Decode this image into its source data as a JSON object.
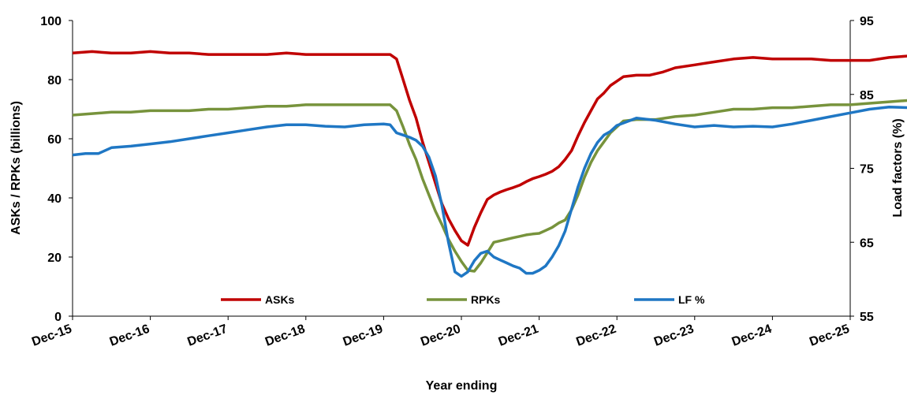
{
  "chart_data": {
    "type": "line",
    "title": "",
    "xlabel": "Year ending",
    "ylabel": "ASKs / RPKs (billions)",
    "y2label": "Load factors (%)",
    "x_tick_labels": [
      "Dec-15",
      "Dec-16",
      "Dec-17",
      "Dec-18",
      "Dec-19",
      "Dec-20",
      "Dec-21",
      "Dec-22",
      "Dec-23",
      "Dec-24",
      "Dec-25"
    ],
    "ylim": [
      0,
      100
    ],
    "y_ticks": [
      "0",
      "20",
      "40",
      "60",
      "80",
      "100"
    ],
    "y2lim": [
      55,
      95
    ],
    "y2_ticks": [
      "55",
      "65",
      "75",
      "85",
      "95"
    ],
    "grid": false,
    "legend_position": "bottom-center",
    "series": [
      {
        "name": "ASKs",
        "axis": "left",
        "color": "#c00000",
        "points": [
          [
            "2015-12",
            89
          ],
          [
            "2016-03",
            89.5
          ],
          [
            "2016-06",
            89
          ],
          [
            "2016-09",
            89
          ],
          [
            "2016-12",
            89.5
          ],
          [
            "2017-03",
            89
          ],
          [
            "2017-06",
            89
          ],
          [
            "2017-09",
            88.5
          ],
          [
            "2017-12",
            88.5
          ],
          [
            "2018-03",
            88.5
          ],
          [
            "2018-06",
            88.5
          ],
          [
            "2018-09",
            89
          ],
          [
            "2018-12",
            88.5
          ],
          [
            "2019-03",
            88.5
          ],
          [
            "2019-06",
            88.5
          ],
          [
            "2019-09",
            88.5
          ],
          [
            "2019-12",
            88.5
          ],
          [
            "2020-01",
            88.5
          ],
          [
            "2020-02",
            87
          ],
          [
            "2020-03",
            80
          ],
          [
            "2020-04",
            73
          ],
          [
            "2020-05",
            67
          ],
          [
            "2020-06",
            59
          ],
          [
            "2020-07",
            52
          ],
          [
            "2020-08",
            45
          ],
          [
            "2020-09",
            38
          ],
          [
            "2020-10",
            33
          ],
          [
            "2020-11",
            29
          ],
          [
            "2020-12",
            25.5
          ],
          [
            "2021-01",
            24
          ],
          [
            "2021-02",
            30
          ],
          [
            "2021-03",
            35
          ],
          [
            "2021-04",
            39.5
          ],
          [
            "2021-05",
            41
          ],
          [
            "2021-06",
            42
          ],
          [
            "2021-07",
            42.8
          ],
          [
            "2021-08",
            43.5
          ],
          [
            "2021-09",
            44.3
          ],
          [
            "2021-10",
            45.5
          ],
          [
            "2021-11",
            46.5
          ],
          [
            "2021-12",
            47.2
          ],
          [
            "2022-01",
            48
          ],
          [
            "2022-02",
            49
          ],
          [
            "2022-03",
            50.5
          ],
          [
            "2022-04",
            53
          ],
          [
            "2022-05",
            56
          ],
          [
            "2022-06",
            61
          ],
          [
            "2022-07",
            65.5
          ],
          [
            "2022-08",
            69.5
          ],
          [
            "2022-09",
            73.5
          ],
          [
            "2022-10",
            75.5
          ],
          [
            "2022-11",
            78
          ],
          [
            "2022-12",
            79.5
          ],
          [
            "2023-01",
            81
          ],
          [
            "2023-03",
            81.5
          ],
          [
            "2023-05",
            81.5
          ],
          [
            "2023-07",
            82.5
          ],
          [
            "2023-09",
            84
          ],
          [
            "2023-12",
            85
          ],
          [
            "2024-03",
            86
          ],
          [
            "2024-06",
            87
          ],
          [
            "2024-09",
            87.5
          ],
          [
            "2024-12",
            87
          ],
          [
            "2025-03",
            87
          ],
          [
            "2025-06",
            87
          ],
          [
            "2025-09",
            86.5
          ],
          [
            "2025-12",
            86.5
          ],
          [
            "2026-03",
            86.5
          ],
          [
            "2026-06",
            87.5
          ],
          [
            "2026-09",
            88
          ],
          [
            "2026-12",
            88.5
          ]
        ]
      },
      {
        "name": "RPKs",
        "axis": "left",
        "color": "#77933c",
        "points": [
          [
            "2015-12",
            68
          ],
          [
            "2016-03",
            68.5
          ],
          [
            "2016-06",
            69
          ],
          [
            "2016-09",
            69
          ],
          [
            "2016-12",
            69.5
          ],
          [
            "2017-03",
            69.5
          ],
          [
            "2017-06",
            69.5
          ],
          [
            "2017-09",
            70
          ],
          [
            "2017-12",
            70
          ],
          [
            "2018-03",
            70.5
          ],
          [
            "2018-06",
            71
          ],
          [
            "2018-09",
            71
          ],
          [
            "2018-12",
            71.5
          ],
          [
            "2019-03",
            71.5
          ],
          [
            "2019-06",
            71.5
          ],
          [
            "2019-09",
            71.5
          ],
          [
            "2019-12",
            71.5
          ],
          [
            "2020-01",
            71.5
          ],
          [
            "2020-02",
            69.5
          ],
          [
            "2020-03",
            64
          ],
          [
            "2020-04",
            58
          ],
          [
            "2020-05",
            53
          ],
          [
            "2020-06",
            46.5
          ],
          [
            "2020-07",
            41
          ],
          [
            "2020-08",
            35.5
          ],
          [
            "2020-09",
            31
          ],
          [
            "2020-10",
            26
          ],
          [
            "2020-11",
            22
          ],
          [
            "2020-12",
            18.5
          ],
          [
            "2021-01",
            15.5
          ],
          [
            "2021-02",
            15.2
          ],
          [
            "2021-03",
            18
          ],
          [
            "2021-04",
            21.5
          ],
          [
            "2021-05",
            25
          ],
          [
            "2021-06",
            25.5
          ],
          [
            "2021-07",
            26
          ],
          [
            "2021-08",
            26.5
          ],
          [
            "2021-09",
            27
          ],
          [
            "2021-10",
            27.5
          ],
          [
            "2021-11",
            27.8
          ],
          [
            "2021-12",
            28
          ],
          [
            "2022-01",
            29
          ],
          [
            "2022-02",
            30
          ],
          [
            "2022-03",
            31.5
          ],
          [
            "2022-04",
            32.5
          ],
          [
            "2022-05",
            36
          ],
          [
            "2022-06",
            41
          ],
          [
            "2022-07",
            47
          ],
          [
            "2022-08",
            52
          ],
          [
            "2022-09",
            56
          ],
          [
            "2022-10",
            59
          ],
          [
            "2022-11",
            62
          ],
          [
            "2022-12",
            64
          ],
          [
            "2023-01",
            66
          ],
          [
            "2023-03",
            66.5
          ],
          [
            "2023-06",
            66.5
          ],
          [
            "2023-09",
            67.5
          ],
          [
            "2023-12",
            68
          ],
          [
            "2024-03",
            69
          ],
          [
            "2024-06",
            70
          ],
          [
            "2024-09",
            70
          ],
          [
            "2024-12",
            70.5
          ],
          [
            "2025-03",
            70.5
          ],
          [
            "2025-06",
            71
          ],
          [
            "2025-09",
            71.5
          ],
          [
            "2025-12",
            71.5
          ],
          [
            "2026-03",
            72
          ],
          [
            "2026-06",
            72.5
          ],
          [
            "2026-09",
            73
          ],
          [
            "2026-12",
            73
          ]
        ]
      },
      {
        "name": "LF %",
        "axis": "right",
        "color": "#1f77c4",
        "points": [
          [
            "2015-12",
            76.8
          ],
          [
            "2016-02",
            77
          ],
          [
            "2016-04",
            77
          ],
          [
            "2016-06",
            77.8
          ],
          [
            "2016-09",
            78
          ],
          [
            "2016-12",
            78.3
          ],
          [
            "2017-03",
            78.6
          ],
          [
            "2017-06",
            79
          ],
          [
            "2017-09",
            79.4
          ],
          [
            "2017-12",
            79.8
          ],
          [
            "2018-03",
            80.2
          ],
          [
            "2018-06",
            80.6
          ],
          [
            "2018-09",
            80.9
          ],
          [
            "2018-12",
            80.9
          ],
          [
            "2019-03",
            80.7
          ],
          [
            "2019-06",
            80.6
          ],
          [
            "2019-09",
            80.9
          ],
          [
            "2019-12",
            81
          ],
          [
            "2020-01",
            80.9
          ],
          [
            "2020-02",
            79.8
          ],
          [
            "2020-03",
            79.5
          ],
          [
            "2020-04",
            79.2
          ],
          [
            "2020-05",
            78.8
          ],
          [
            "2020-06",
            78
          ],
          [
            "2020-07",
            76.5
          ],
          [
            "2020-08",
            74
          ],
          [
            "2020-09",
            70
          ],
          [
            "2020-10",
            65
          ],
          [
            "2020-11",
            61
          ],
          [
            "2020-12",
            60.4
          ],
          [
            "2021-01",
            61
          ],
          [
            "2021-02",
            62.5
          ],
          [
            "2021-03",
            63.5
          ],
          [
            "2021-04",
            63.8
          ],
          [
            "2021-05",
            63
          ],
          [
            "2021-06",
            62.6
          ],
          [
            "2021-07",
            62.2
          ],
          [
            "2021-08",
            61.8
          ],
          [
            "2021-09",
            61.5
          ],
          [
            "2021-10",
            60.8
          ],
          [
            "2021-11",
            60.8
          ],
          [
            "2021-12",
            61.2
          ],
          [
            "2022-01",
            61.8
          ],
          [
            "2022-02",
            63
          ],
          [
            "2022-03",
            64.5
          ],
          [
            "2022-04",
            66.5
          ],
          [
            "2022-05",
            69.5
          ],
          [
            "2022-06",
            72.5
          ],
          [
            "2022-07",
            75
          ],
          [
            "2022-08",
            77
          ],
          [
            "2022-09",
            78.5
          ],
          [
            "2022-10",
            79.5
          ],
          [
            "2022-11",
            80
          ],
          [
            "2022-12",
            80.8
          ],
          [
            "2023-03",
            81.8
          ],
          [
            "2023-06",
            81.5
          ],
          [
            "2023-09",
            81
          ],
          [
            "2023-12",
            80.6
          ],
          [
            "2024-03",
            80.8
          ],
          [
            "2024-06",
            80.6
          ],
          [
            "2024-09",
            80.7
          ],
          [
            "2024-12",
            80.6
          ],
          [
            "2025-03",
            81
          ],
          [
            "2025-06",
            81.5
          ],
          [
            "2025-09",
            82
          ],
          [
            "2025-12",
            82.5
          ],
          [
            "2026-03",
            83
          ],
          [
            "2026-06",
            83.3
          ],
          [
            "2026-09",
            83.2
          ],
          [
            "2026-12",
            82.8
          ]
        ]
      }
    ]
  }
}
